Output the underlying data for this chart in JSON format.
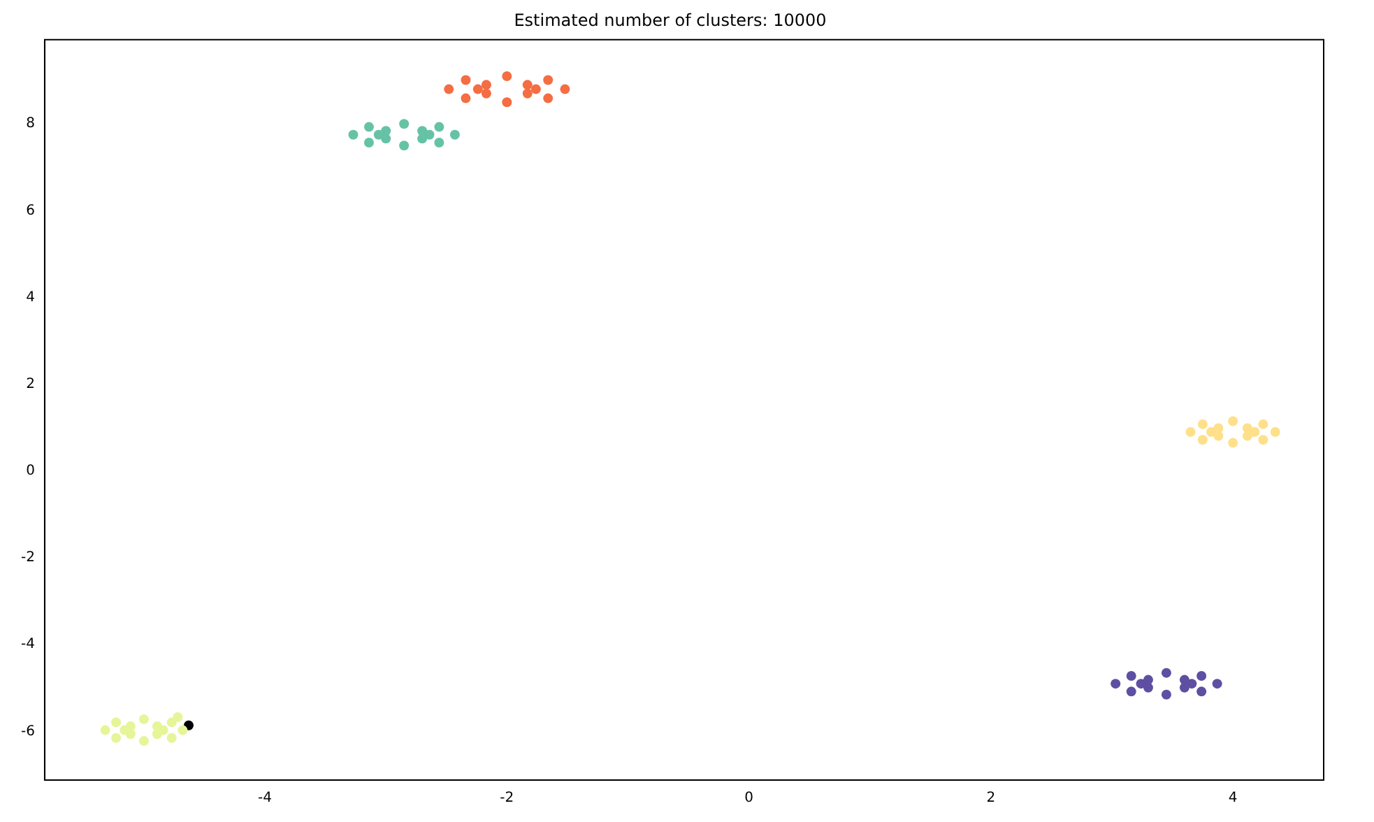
{
  "chart_data": {
    "type": "scatter",
    "title": "Estimated number of clusters: 10000",
    "marker": "circle",
    "grid": false,
    "legend": false,
    "xlim": [
      -5.82,
      4.75
    ],
    "ylim": [
      -7.12,
      9.94
    ],
    "xticks": [
      -4,
      -2,
      0,
      2,
      4
    ],
    "yticks": [
      -6,
      -4,
      -2,
      0,
      2,
      4,
      6,
      8
    ],
    "series": [
      {
        "color": "#f46d43",
        "x": [
          -1.52,
          -2.48,
          -2,
          -2,
          -1.66,
          -2.34,
          -1.66,
          -2.34,
          -1.76,
          -2.24,
          -1.83,
          -2.17,
          -1.83,
          -2.17
        ],
        "values": [
          8.8,
          8.8,
          9.1,
          8.5,
          9.01,
          9.01,
          8.59,
          8.59,
          8.8,
          8.8,
          8.9,
          8.9,
          8.7,
          8.7
        ]
      },
      {
        "color": "#66c2a5",
        "x": [
          -2.43,
          -3.27,
          -2.85,
          -2.85,
          -2.56,
          -3.14,
          -2.56,
          -3.14,
          -2.64,
          -3.06,
          -2.7,
          -3.0,
          -2.7,
          -3.0
        ],
        "values": [
          7.75,
          7.75,
          8.0,
          7.5,
          7.93,
          7.93,
          7.57,
          7.57,
          7.75,
          7.75,
          7.84,
          7.84,
          7.66,
          7.66
        ]
      },
      {
        "color": "#fee08b",
        "x": [
          4.35,
          3.65,
          4,
          4,
          4.25,
          3.75,
          4.25,
          3.75,
          4.18,
          3.82,
          4.12,
          3.88,
          4.12,
          3.88
        ],
        "values": [
          0.9,
          0.9,
          1.15,
          0.65,
          1.08,
          1.08,
          0.72,
          0.72,
          0.9,
          0.9,
          0.99,
          0.99,
          0.81,
          0.81
        ]
      },
      {
        "color": "#5e4fa2",
        "x": [
          3.87,
          3.03,
          3.45,
          3.45,
          3.74,
          3.16,
          3.74,
          3.16,
          3.66,
          3.24,
          3.6,
          3.3,
          3.6,
          3.3
        ],
        "values": [
          -4.9,
          -4.9,
          -4.65,
          -5.15,
          -4.72,
          -4.72,
          -5.08,
          -5.08,
          -4.9,
          -4.9,
          -4.81,
          -4.81,
          -4.99,
          -4.99
        ]
      },
      {
        "color": "#e6f598",
        "x": [
          -4.68,
          -5.32,
          -5,
          -5,
          -4.77,
          -5.23,
          -4.77,
          -5.23,
          -4.84,
          -5.16,
          -4.89,
          -5.11,
          -4.89,
          -5.11,
          -4.72
        ],
        "values": [
          -5.97,
          -5.97,
          -5.72,
          -6.22,
          -5.79,
          -5.79,
          -6.15,
          -6.15,
          -5.97,
          -5.97,
          -5.88,
          -5.88,
          -6.06,
          -6.06,
          -5.67
        ]
      },
      {
        "color": "#000000",
        "x": [
          -4.63
        ],
        "values": [
          -5.86
        ]
      }
    ]
  }
}
